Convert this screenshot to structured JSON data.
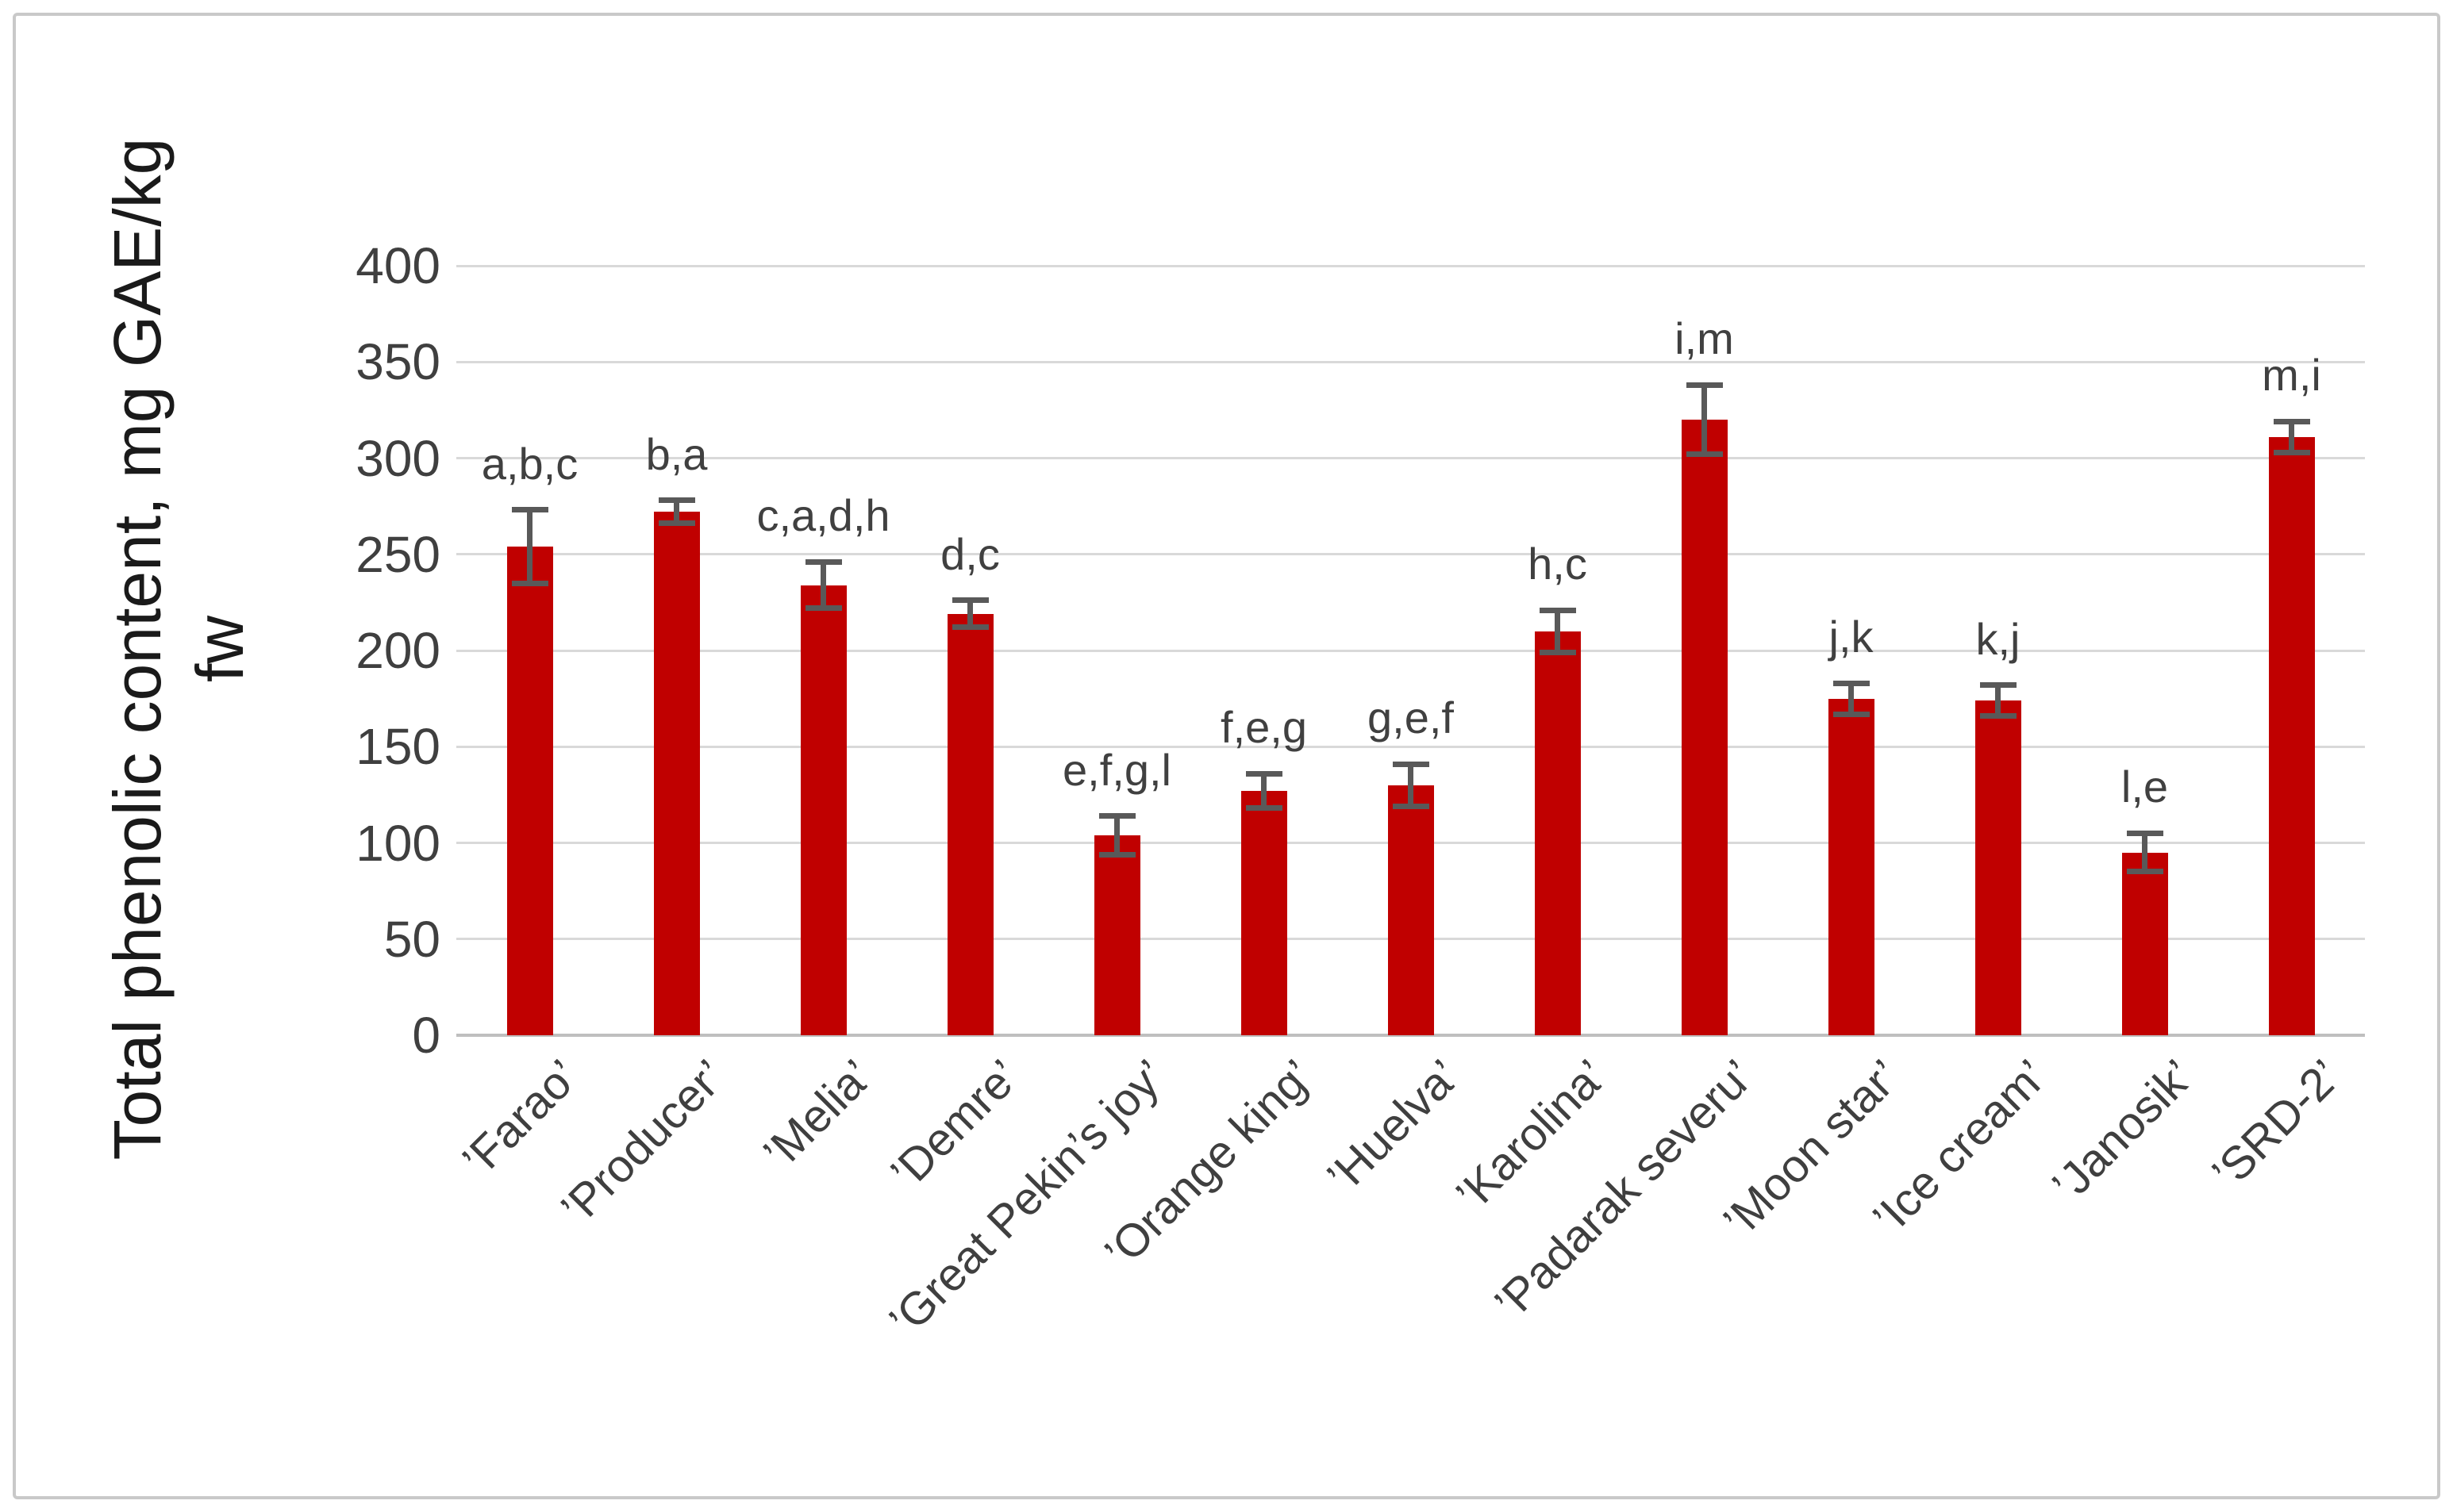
{
  "chart_data": {
    "type": "bar",
    "title": "",
    "xlabel": "",
    "ylabel_line1": "Total phenolic content, mg GAE/kg",
    "ylabel_line2": "fw",
    "ylabel_full": "Total phenolic content, mg GAE/kg fw",
    "ylim": [
      0,
      400
    ],
    "yticks": [
      0,
      50,
      100,
      150,
      200,
      250,
      300,
      350,
      400
    ],
    "grid": "horizontal-only",
    "legend": false,
    "bar_color": "#c00000",
    "error_bar_color": "#595959",
    "gridline_color": "#d9d9d9",
    "axis_line_color": "#bfbfbf",
    "categories": [
      "’Farao’",
      "’Producer’",
      "’Melia’",
      "’Demre’",
      "’Great Pekin’s joy’",
      "’Orange king’",
      "’Huelva’",
      "’Karolina’",
      "’Padarak severu’",
      "’Moon star’",
      "’Ice cream’",
      "’Janosik’",
      "’SRD-2’"
    ],
    "values": [
      254,
      272,
      234,
      219,
      104,
      127,
      130,
      210,
      320,
      175,
      174,
      95,
      311
    ],
    "errors": [
      19,
      6,
      12,
      7,
      10,
      9,
      11,
      11,
      18,
      8,
      8,
      10,
      8
    ],
    "significance_labels": [
      "a,b,c",
      "b,a",
      "c,a,d,h",
      "d,c",
      "e,f,g,l",
      "f,e,g",
      "g,e,f",
      "h,c",
      "i,m",
      "j,k",
      "k,j",
      "l,e",
      "m,i"
    ]
  }
}
